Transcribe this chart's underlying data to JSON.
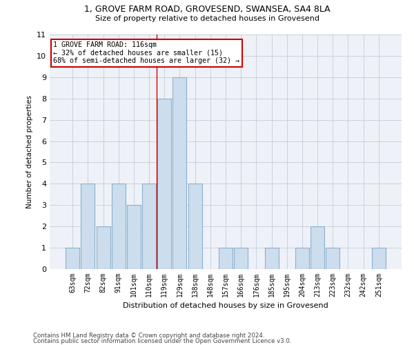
{
  "title": "1, GROVE FARM ROAD, GROVESEND, SWANSEA, SA4 8LA",
  "subtitle": "Size of property relative to detached houses in Grovesend",
  "xlabel": "Distribution of detached houses by size in Grovesend",
  "ylabel": "Number of detached properties",
  "categories": [
    "63sqm",
    "72sqm",
    "82sqm",
    "91sqm",
    "101sqm",
    "110sqm",
    "119sqm",
    "129sqm",
    "138sqm",
    "148sqm",
    "157sqm",
    "166sqm",
    "176sqm",
    "185sqm",
    "195sqm",
    "204sqm",
    "213sqm",
    "223sqm",
    "232sqm",
    "242sqm",
    "251sqm"
  ],
  "values": [
    1,
    4,
    2,
    4,
    3,
    4,
    8,
    9,
    4,
    0,
    1,
    1,
    0,
    1,
    0,
    1,
    2,
    1,
    0,
    0,
    1
  ],
  "bar_color": "#ccdded",
  "bar_edge_color": "#8ab0cc",
  "marker_label": "1 GROVE FARM ROAD: 116sqm",
  "annotation_line1": "← 32% of detached houses are smaller (15)",
  "annotation_line2": "68% of semi-detached houses are larger (32) →",
  "vline_x": 5.5,
  "vline_color": "#cc0000",
  "annotation_box_edge_color": "#cc0000",
  "grid_color": "#c8d0dc",
  "background_color": "#eef2f8",
  "footer1": "Contains HM Land Registry data © Crown copyright and database right 2024.",
  "footer2": "Contains public sector information licensed under the Open Government Licence v3.0.",
  "ylim": [
    0,
    11
  ],
  "yticks": [
    0,
    1,
    2,
    3,
    4,
    5,
    6,
    7,
    8,
    9,
    10,
    11
  ]
}
